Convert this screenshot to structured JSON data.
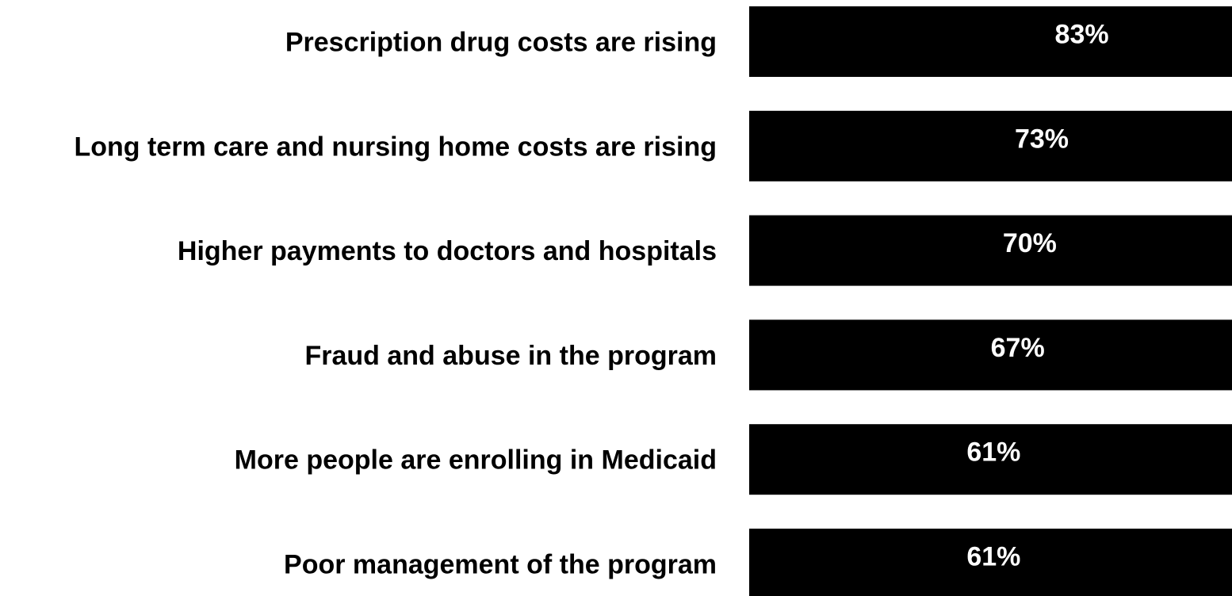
{
  "chart_data": {
    "type": "bar",
    "orientation": "horizontal",
    "categories": [
      "Prescription drug costs are rising",
      "Long term care and nursing home costs are rising",
      "Higher payments to doctors and hospitals",
      "Fraud and abuse in the program",
      "More people are enrolling in Medicaid",
      "Poor management of the program"
    ],
    "values": [
      83,
      73,
      70,
      67,
      61,
      61
    ],
    "data_labels": [
      "83%",
      "73%",
      "70%",
      "67%",
      "61%",
      "61%"
    ],
    "title": "",
    "xlabel": "",
    "ylabel": "",
    "grid": false,
    "legend": "none",
    "colors": {
      "bar": "#000000",
      "bar_label": "#ffffff",
      "category_label": "#000000",
      "background": "#ffffff"
    }
  }
}
